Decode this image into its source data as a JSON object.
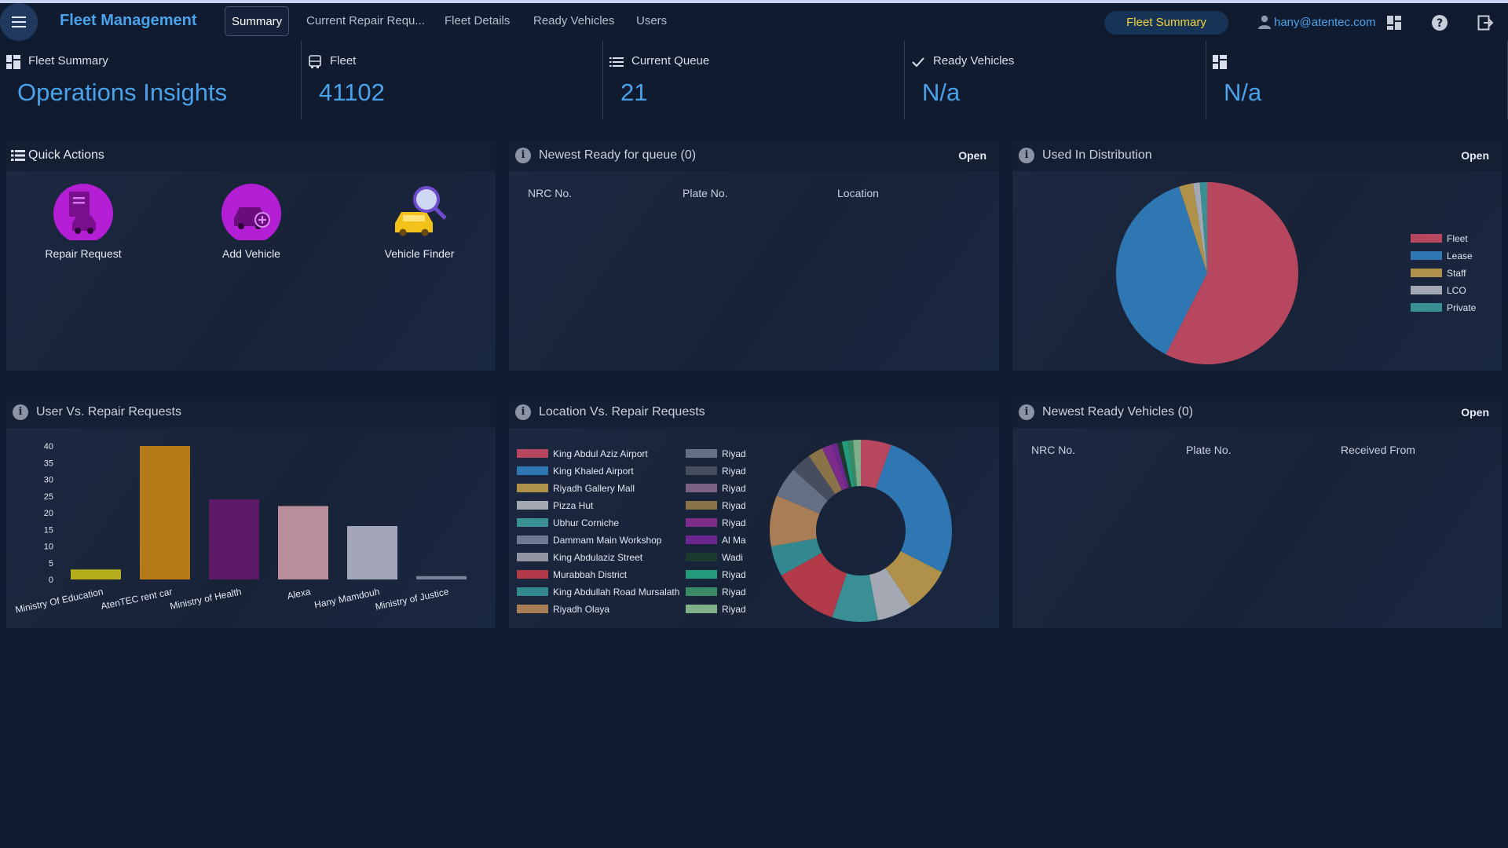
{
  "header": {
    "app_title": "Fleet Management",
    "tabs": [
      {
        "label": "Summary",
        "active": true
      },
      {
        "label": "Current Repair Requ..."
      },
      {
        "label": "Fleet Details"
      },
      {
        "label": "Ready Vehicles"
      },
      {
        "label": "Users"
      }
    ],
    "fleet_summary_button": "Fleet Summary",
    "user_email": "hany@atentec.com",
    "accent": "#4aa3ea",
    "button_text_color": "#f3d33a"
  },
  "stats": [
    {
      "label": "Fleet Summary",
      "value": "Operations Insights",
      "icon": "dashboard-icon"
    },
    {
      "label": "Fleet",
      "value": "41102",
      "icon": "bus-icon"
    },
    {
      "label": "Current Queue",
      "value": "21",
      "icon": "list-icon"
    },
    {
      "label": "Ready Vehicles",
      "value": "N/a",
      "icon": "check-icon"
    },
    {
      "label": "",
      "value": "N/a",
      "icon": "dashboard-icon"
    }
  ],
  "quick_actions": {
    "title": "Quick Actions",
    "items": [
      {
        "label": "Repair Request",
        "icon": "repair-request-icon"
      },
      {
        "label": "Add Vehicle",
        "icon": "add-vehicle-icon"
      },
      {
        "label": "Vehicle Finder",
        "icon": "vehicle-finder-icon"
      }
    ]
  },
  "newest_ready_queue": {
    "title": "Newest Ready for queue (0)",
    "open": "Open",
    "columns": [
      "NRC No.",
      "Plate No.",
      "Location"
    ]
  },
  "used_in_distribution": {
    "title": "Used In Distribution",
    "open": "Open"
  },
  "user_vs_repair": {
    "title": "User Vs. Repair Requests"
  },
  "location_vs_repair": {
    "title": "Location Vs. Repair Requests"
  },
  "newest_ready_vehicles": {
    "title": "Newest Ready Vehicles (0)",
    "open": "Open",
    "columns": [
      "NRC No.",
      "Plate No.",
      "Received From"
    ]
  },
  "chart_data": [
    {
      "type": "pie",
      "name": "Used In Distribution",
      "labels": [
        "Fleet",
        "Lease",
        "Staff",
        "LCO",
        "Private"
      ],
      "values": [
        57.5,
        37.5,
        2.5,
        1.2,
        1.3
      ],
      "colors": [
        "#b6475e",
        "#2e77b2",
        "#b0914a",
        "#a4a8b3",
        "#3a8f95"
      ],
      "legend": "right"
    },
    {
      "type": "bar",
      "name": "User Vs. Repair Requests",
      "categories": [
        "Ministry Of Education",
        "AtenTEC rent car",
        "Ministry of Health",
        "Alexa",
        "Hany Mamdouh",
        "Ministry of Justice"
      ],
      "values": [
        3,
        40,
        24,
        22,
        16,
        1
      ],
      "colors": [
        "#b5ad1c",
        "#b67a18",
        "#5c1a66",
        "#b78e99",
        "#a2a6b8",
        "#7a8096"
      ],
      "yticks": [
        0,
        5,
        10,
        15,
        20,
        25,
        30,
        35,
        40
      ],
      "ylim": [
        0,
        40
      ],
      "grid": false
    },
    {
      "type": "pie",
      "variant": "donut",
      "name": "Location Vs. Repair Requests",
      "labels": [
        "King Abdul Aziz Airport",
        "King Khaled Airport",
        "Riyadh Gallery Mall",
        "Pizza Hut",
        "Ubhur Corniche",
        "Dammam Main Workshop",
        "King Abdulaziz Street",
        "Murabbah District",
        "King Abdullah Road Mursalath",
        "Riyadh Olaya",
        "Riyad",
        "Riyad",
        "Riyad",
        "Riyad",
        "Riyad",
        "Al Ma",
        "Wadi",
        "Riyad",
        "Riyad",
        "Riyad"
      ],
      "values": [
        6,
        30,
        9,
        7,
        9,
        0,
        0,
        13,
        6,
        10,
        6,
        4,
        0,
        3,
        2,
        1,
        1,
        1.2,
        1,
        1.5
      ],
      "colors": [
        "#b6475e",
        "#2e77b2",
        "#b0914a",
        "#a4a8b3",
        "#3a8f95",
        "#6e7890",
        "#9296a3",
        "#b23a48",
        "#34888f",
        "#a97d55",
        "#667085",
        "#454d5f",
        "#7a6285",
        "#8a7348",
        "#7d2c8a",
        "#6c2690",
        "#1c3a2e",
        "#239a7c",
        "#3a8a66",
        "#7fb08a"
      ],
      "legend": "left"
    }
  ]
}
